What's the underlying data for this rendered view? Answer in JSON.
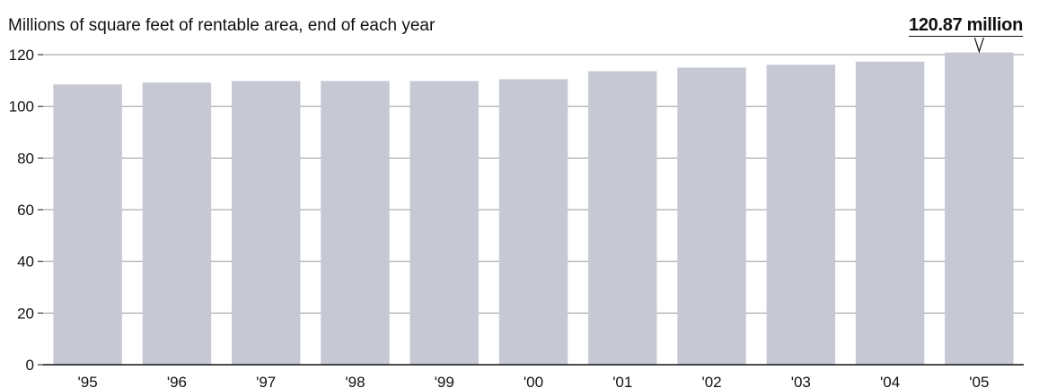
{
  "subtitle": "Millions of square feet of rentable area, end of each year",
  "callout": "120.87 million",
  "colors": {
    "bar": "#c6c9d4",
    "grid": "#9a9a9a",
    "axis": "#111111",
    "text": "#111111"
  },
  "chart_data": {
    "type": "bar",
    "subtitle": "Millions of square feet of rentable area, end of each year",
    "categories": [
      "'95",
      "'96",
      "'97",
      "'98",
      "'99",
      "'00",
      "'01",
      "'02",
      "'03",
      "'04",
      "'05"
    ],
    "values": [
      108.5,
      109.2,
      109.8,
      109.8,
      109.8,
      110.5,
      113.6,
      115.0,
      116.1,
      117.3,
      120.87
    ],
    "y_ticks": [
      0,
      20,
      40,
      60,
      80,
      100,
      120
    ],
    "ylim": [
      0,
      120
    ],
    "grid": true,
    "annotation": {
      "category": "'05",
      "text": "120.87 million"
    }
  }
}
